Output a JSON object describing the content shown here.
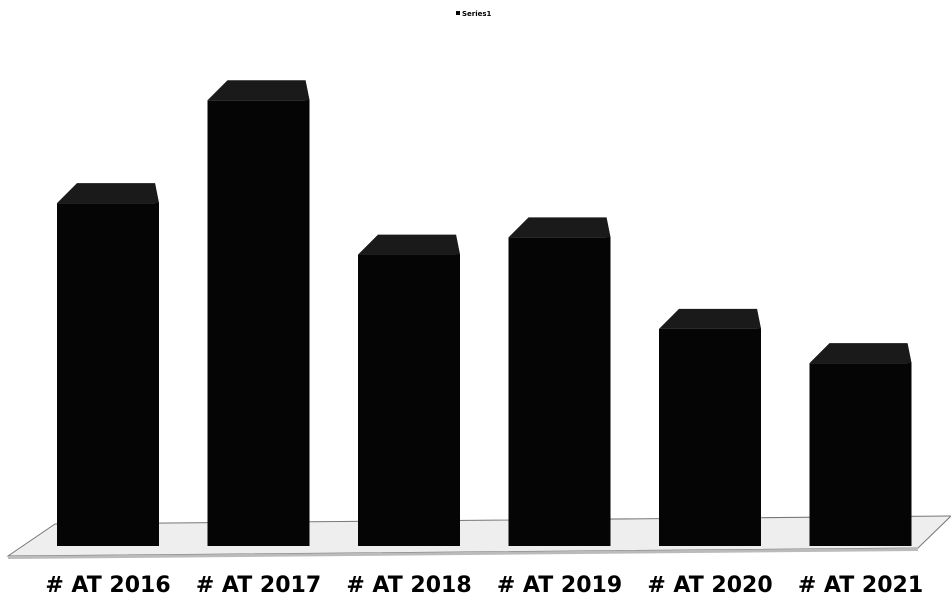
{
  "chart_data": {
    "type": "bar",
    "style": "3d",
    "title": "",
    "legend": {
      "entries": [
        "Series1"
      ],
      "position": "top"
    },
    "categories": [
      "# AT 2016",
      "# AT 2017",
      "# AT 2018",
      "# AT 2019",
      "# AT 2020",
      "# AT 2021"
    ],
    "series": [
      {
        "name": "Series1",
        "values": [
          300,
          390,
          255,
          270,
          190,
          160
        ]
      }
    ],
    "xlabel": "",
    "ylabel": "",
    "ylim": [
      0,
      420
    ],
    "grid": false,
    "colors": {
      "bar_front": "#050505",
      "bar_top": "#1a1a1a",
      "bar_side": "#202020",
      "floor": "#eeeeee",
      "floor_edge": "#777777"
    }
  }
}
